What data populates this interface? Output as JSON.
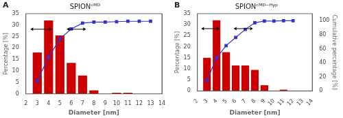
{
  "chart_data": [
    {
      "type": "bar",
      "title": "SPIONᶜᴹᴰ",
      "annotations": [
        {
          "text": "A"
        }
      ],
      "x": [
        3,
        4,
        5,
        6,
        7,
        8,
        9,
        10,
        11,
        12,
        13
      ],
      "series": [
        {
          "type": "bar",
          "color": "#cc0000",
          "values": [
            18.0,
            32.0,
            25.5,
            13.5,
            8.0,
            1.5,
            0.0,
            0.5,
            0.5,
            0.0,
            0.0
          ]
        },
        {
          "type": "line",
          "axis": "y2",
          "color": "#3333cc",
          "marker": "square",
          "values": [
            18.0,
            50.0,
            75.5,
            89.0,
            97.0,
            98.5,
            98.5,
            99.0,
            99.5,
            99.5,
            99.5
          ]
        }
      ],
      "arrows": [
        {
          "x": [
            2.4,
            4.3
          ],
          "y": 28.2
        },
        {
          "x": [
            5.6,
            7.3
          ],
          "y": 28.2
        }
      ],
      "xlabel": "Diameter [nm]",
      "ylabel": "Percentage [%]",
      "xlim": [
        2,
        14
      ],
      "xticks": [
        2,
        3,
        4,
        5,
        6,
        7,
        8,
        9,
        10,
        11,
        12,
        13,
        14
      ],
      "ylim": [
        0,
        35
      ],
      "yticks": [
        0,
        5,
        10,
        15,
        20,
        25,
        30,
        35
      ],
      "y2lim": [
        0,
        110
      ],
      "grid": false
    },
    {
      "type": "bar",
      "title": "SPIONᶜᴹᴰ⁻ᴴʸᵖ",
      "annotations": [
        {
          "text": "B"
        }
      ],
      "x": [
        3,
        4,
        5,
        6,
        7,
        8,
        9,
        10,
        11,
        12
      ],
      "series": [
        {
          "type": "bar",
          "color": "#cc0000",
          "values": [
            15.0,
            32.0,
            17.5,
            11.5,
            11.5,
            9.5,
            2.5,
            0.0,
            0.5,
            0.0
          ]
        },
        {
          "type": "line",
          "axis": "y2",
          "color": "#3333cc",
          "marker": "square",
          "values": [
            15.0,
            47.0,
            64.5,
            76.0,
            87.5,
            97.0,
            99.5,
            99.5,
            100.0,
            100.0
          ]
        }
      ],
      "arrows": [
        {
          "x": [
            2.4,
            4.3
          ],
          "y": 28.2
        },
        {
          "x": [
            5.8,
            7.8
          ],
          "y": 28.2
        }
      ],
      "xlabel": "Diameter [nm]",
      "ylabel": "Percentage [%]",
      "y2label": "Cumulative percentage [%]",
      "xlim": [
        2,
        14
      ],
      "xticks": [
        2,
        3,
        4,
        5,
        6,
        7,
        8,
        9,
        10,
        11,
        12,
        13,
        14
      ],
      "ylim": [
        0,
        35
      ],
      "yticks": [
        0,
        5,
        10,
        15,
        20,
        25,
        30,
        35
      ],
      "y2lim": [
        0,
        110
      ],
      "y2ticks": [
        0,
        20,
        40,
        60,
        80,
        100
      ],
      "grid": false
    }
  ]
}
